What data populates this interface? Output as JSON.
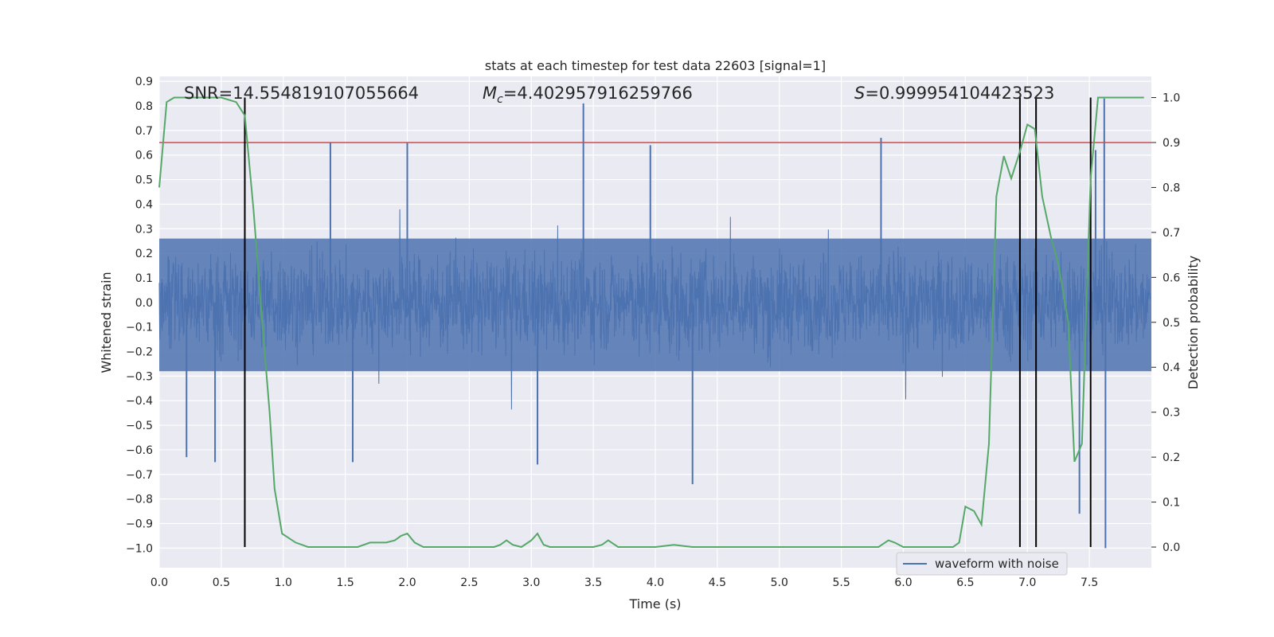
{
  "chart_data": {
    "type": "line",
    "title": "stats at each timestep for test data 22603 [signal=1]",
    "xlabel": "Time (s)",
    "ylabel_left": "Whitened strain",
    "ylabel_right": "Detection probability",
    "xlim": [
      0.0,
      8.0
    ],
    "ylim_left": [
      -1.08,
      0.92
    ],
    "ylim_right": [
      -0.046,
      1.047
    ],
    "x_ticks": [
      "0.0",
      "0.5",
      "1.0",
      "1.5",
      "2.0",
      "2.5",
      "3.0",
      "3.5",
      "4.0",
      "4.5",
      "5.0",
      "5.5",
      "6.0",
      "6.5",
      "7.0",
      "7.5"
    ],
    "y_left_ticks": [
      "0.9",
      "0.8",
      "0.7",
      "0.6",
      "0.5",
      "0.4",
      "0.3",
      "0.2",
      "0.1",
      "0.0",
      "−0.1",
      "−0.2",
      "−0.3",
      "−0.4",
      "−0.5",
      "−0.6",
      "−0.7",
      "−0.8",
      "−0.9",
      "−1.0"
    ],
    "y_right_ticks": [
      "0.0",
      "0.1",
      "0.2",
      "0.3",
      "0.4",
      "0.5",
      "0.6",
      "0.7",
      "0.8",
      "0.9",
      "1.0"
    ],
    "annotations": {
      "snr": "SNR=14.554819107055664",
      "mc_symbol": "M",
      "mc_sub": "c",
      "mc_value": "=4.402957916259766",
      "s_symbol": "S",
      "s_value": "=0.999954104423523"
    },
    "threshold": {
      "value": 0.9,
      "axis": "right",
      "color": "#c44e52"
    },
    "vertical_lines": [
      0.69,
      6.94,
      7.07,
      7.51
    ],
    "legend": {
      "label": "waveform with noise",
      "position": "bottom-right"
    },
    "waveform": {
      "name": "waveform with noise",
      "color": "#4c72b0",
      "peaks": [
        {
          "x": 0.45,
          "y": -0.65
        },
        {
          "x": 0.22,
          "y": -0.63
        },
        {
          "x": 1.38,
          "y": 0.65
        },
        {
          "x": 1.56,
          "y": -0.65
        },
        {
          "x": 2.0,
          "y": 0.65
        },
        {
          "x": 3.05,
          "y": -0.66
        },
        {
          "x": 3.42,
          "y": 0.81
        },
        {
          "x": 3.96,
          "y": 0.64
        },
        {
          "x": 4.3,
          "y": -0.74
        },
        {
          "x": 5.82,
          "y": 0.67
        },
        {
          "x": 7.42,
          "y": -0.86
        },
        {
          "x": 7.62,
          "y": 0.83
        },
        {
          "x": 7.63,
          "y": -1.0
        },
        {
          "x": 7.55,
          "y": 0.62
        }
      ],
      "typical_amplitude": 0.3
    },
    "series": [
      {
        "name": "detection probability",
        "color": "#55a868",
        "axis": "right",
        "x": [
          0.0,
          0.06,
          0.12,
          0.2,
          0.3,
          0.4,
          0.5,
          0.62,
          0.69,
          0.76,
          0.83,
          0.89,
          0.93,
          0.99,
          1.1,
          1.2,
          1.4,
          1.6,
          1.7,
          1.77,
          1.83,
          1.9,
          1.95,
          2.0,
          2.06,
          2.13,
          2.3,
          2.5,
          2.7,
          2.75,
          2.8,
          2.85,
          2.92,
          3.0,
          3.05,
          3.1,
          3.15,
          3.3,
          3.5,
          3.57,
          3.62,
          3.7,
          3.9,
          4.0,
          4.15,
          4.3,
          4.5,
          4.9,
          5.4,
          5.8,
          5.88,
          5.93,
          6.0,
          6.06,
          6.15,
          6.3,
          6.4,
          6.45,
          6.5,
          6.57,
          6.63,
          6.69,
          6.75,
          6.81,
          6.87,
          6.94,
          7.0,
          7.06,
          7.12,
          7.19,
          7.25,
          7.33,
          7.38,
          7.44,
          7.51,
          7.57,
          7.7,
          7.94
        ],
        "y": [
          0.8,
          0.99,
          1.0,
          1.0,
          1.0,
          1.0,
          1.0,
          0.99,
          0.96,
          0.75,
          0.5,
          0.3,
          0.13,
          0.03,
          0.01,
          0.0,
          0.0,
          0.0,
          0.01,
          0.01,
          0.01,
          0.015,
          0.025,
          0.03,
          0.01,
          0.0,
          0.0,
          0.0,
          0.0,
          0.005,
          0.015,
          0.005,
          0.0,
          0.015,
          0.03,
          0.005,
          0.0,
          0.0,
          0.0,
          0.005,
          0.015,
          0.0,
          0.0,
          0.0,
          0.005,
          0.0,
          0.0,
          0.0,
          0.0,
          0.0,
          0.015,
          0.01,
          0.0,
          0.0,
          0.0,
          0.0,
          0.0,
          0.01,
          0.09,
          0.08,
          0.05,
          0.23,
          0.78,
          0.87,
          0.82,
          0.88,
          0.94,
          0.93,
          0.78,
          0.69,
          0.63,
          0.5,
          0.19,
          0.23,
          0.82,
          1.0,
          1.0,
          1.0
        ]
      }
    ]
  }
}
